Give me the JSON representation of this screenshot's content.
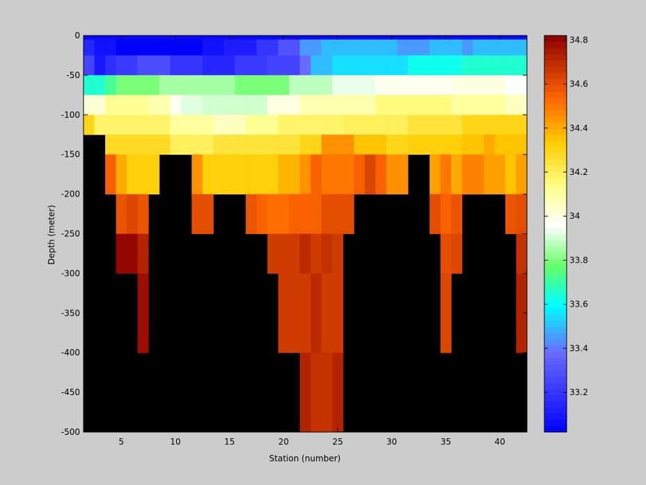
{
  "chart_data": {
    "type": "heatmap",
    "title": "",
    "xlabel": "Station (number)",
    "ylabel": "Depth (meter)",
    "xlim": [
      1.5,
      42.5
    ],
    "ylim": [
      -500,
      0
    ],
    "xticks": [
      5,
      10,
      15,
      20,
      25,
      30,
      35,
      40
    ],
    "yticks": [
      0,
      -50,
      -100,
      -150,
      -200,
      -250,
      -300,
      -350,
      -400,
      -450,
      -500
    ],
    "depth_bins": [
      {
        "top": 0,
        "bottom": -5
      },
      {
        "top": -5,
        "bottom": -25
      },
      {
        "top": -25,
        "bottom": -50
      },
      {
        "top": -50,
        "bottom": -75
      },
      {
        "top": -75,
        "bottom": -100
      },
      {
        "top": -100,
        "bottom": -125
      },
      {
        "top": -125,
        "bottom": -150
      },
      {
        "top": -150,
        "bottom": -200
      },
      {
        "top": -200,
        "bottom": -250
      },
      {
        "top": -250,
        "bottom": -300
      },
      {
        "top": -300,
        "bottom": -400
      },
      {
        "top": -400,
        "bottom": -500
      }
    ],
    "rows": [
      {
        "segments": [
          {
            "from": 2,
            "to": 42,
            "value": 33.05
          }
        ]
      },
      {
        "segments": [
          {
            "from": 2,
            "to": 2,
            "value": 33.15
          },
          {
            "from": 3,
            "to": 4,
            "value": 33.08
          },
          {
            "from": 5,
            "to": 12,
            "value": 33.02
          },
          {
            "from": 13,
            "to": 14,
            "value": 33.08
          },
          {
            "from": 15,
            "to": 17,
            "value": 33.12
          },
          {
            "from": 18,
            "to": 19,
            "value": 33.2
          },
          {
            "from": 20,
            "to": 21,
            "value": 33.3
          },
          {
            "from": 22,
            "to": 23,
            "value": 33.45
          },
          {
            "from": 24,
            "to": 30,
            "value": 33.5
          },
          {
            "from": 31,
            "to": 33,
            "value": 33.45
          },
          {
            "from": 34,
            "to": 36,
            "value": 33.5
          },
          {
            "from": 37,
            "to": 37,
            "value": 33.45
          },
          {
            "from": 38,
            "to": 42,
            "value": 33.5
          }
        ]
      },
      {
        "segments": [
          {
            "from": 2,
            "to": 2,
            "value": 33.25
          },
          {
            "from": 3,
            "to": 3,
            "value": 33.1
          },
          {
            "from": 4,
            "to": 4,
            "value": 33.18
          },
          {
            "from": 5,
            "to": 6,
            "value": 33.22
          },
          {
            "from": 7,
            "to": 9,
            "value": 33.28
          },
          {
            "from": 10,
            "to": 12,
            "value": 33.2
          },
          {
            "from": 13,
            "to": 15,
            "value": 33.15
          },
          {
            "from": 16,
            "to": 18,
            "value": 33.22
          },
          {
            "from": 19,
            "to": 21,
            "value": 33.25
          },
          {
            "from": 22,
            "to": 22,
            "value": 33.38
          },
          {
            "from": 23,
            "to": 24,
            "value": 33.5
          },
          {
            "from": 25,
            "to": 31,
            "value": 33.55
          },
          {
            "from": 32,
            "to": 36,
            "value": 33.62
          },
          {
            "from": 37,
            "to": 42,
            "value": 33.65
          }
        ]
      },
      {
        "segments": [
          {
            "from": 2,
            "to": 3,
            "value": 33.65
          },
          {
            "from": 4,
            "to": 4,
            "value": 33.72
          },
          {
            "from": 5,
            "to": 8,
            "value": 33.8
          },
          {
            "from": 9,
            "to": 15,
            "value": 33.85
          },
          {
            "from": 16,
            "to": 20,
            "value": 33.8
          },
          {
            "from": 21,
            "to": 24,
            "value": 33.88
          },
          {
            "from": 25,
            "to": 28,
            "value": 33.93
          },
          {
            "from": 29,
            "to": 35,
            "value": 33.98
          },
          {
            "from": 36,
            "to": 40,
            "value": 34.0
          },
          {
            "from": 41,
            "to": 42,
            "value": 33.95
          }
        ]
      },
      {
        "segments": [
          {
            "from": 2,
            "to": 3,
            "value": 34.02
          },
          {
            "from": 4,
            "to": 7,
            "value": 34.12
          },
          {
            "from": 8,
            "to": 9,
            "value": 34.08
          },
          {
            "from": 10,
            "to": 10,
            "value": 33.98
          },
          {
            "from": 11,
            "to": 12,
            "value": 33.92
          },
          {
            "from": 13,
            "to": 18,
            "value": 33.9
          },
          {
            "from": 19,
            "to": 21,
            "value": 34.0
          },
          {
            "from": 22,
            "to": 28,
            "value": 34.08
          },
          {
            "from": 29,
            "to": 35,
            "value": 34.15
          },
          {
            "from": 36,
            "to": 40,
            "value": 34.1
          },
          {
            "from": 41,
            "to": 42,
            "value": 34.05
          }
        ]
      },
      {
        "segments": [
          {
            "from": 2,
            "to": 2,
            "value": 34.3
          },
          {
            "from": 3,
            "to": 9,
            "value": 34.18
          },
          {
            "from": 10,
            "to": 13,
            "value": 34.1
          },
          {
            "from": 14,
            "to": 16,
            "value": 34.05
          },
          {
            "from": 17,
            "to": 19,
            "value": 34.12
          },
          {
            "from": 20,
            "to": 25,
            "value": 34.18
          },
          {
            "from": 26,
            "to": 31,
            "value": 34.2
          },
          {
            "from": 32,
            "to": 36,
            "value": 34.25
          },
          {
            "from": 37,
            "to": 42,
            "value": 34.3
          }
        ]
      },
      {
        "segments": [
          {
            "from": 4,
            "to": 9,
            "value": 34.28
          },
          {
            "from": 10,
            "to": 13,
            "value": 34.2
          },
          {
            "from": 14,
            "to": 21,
            "value": 34.25
          },
          {
            "from": 22,
            "to": 23,
            "value": 34.3
          },
          {
            "from": 24,
            "to": 26,
            "value": 34.45
          },
          {
            "from": 27,
            "to": 29,
            "value": 34.35
          },
          {
            "from": 30,
            "to": 31,
            "value": 34.3
          },
          {
            "from": 32,
            "to": 36,
            "value": 34.32
          },
          {
            "from": 37,
            "to": 38,
            "value": 34.35
          },
          {
            "from": 39,
            "to": 39,
            "value": 34.4
          },
          {
            "from": 40,
            "to": 42,
            "value": 34.35
          }
        ]
      },
      {
        "segments": [
          {
            "from": 4,
            "to": 4,
            "value": 34.55
          },
          {
            "from": 5,
            "to": 5,
            "value": 34.4
          },
          {
            "from": 6,
            "to": 8,
            "value": 34.32
          },
          {
            "from": 12,
            "to": 12,
            "value": 34.45
          },
          {
            "from": 13,
            "to": 19,
            "value": 34.32
          },
          {
            "from": 20,
            "to": 21,
            "value": 34.38
          },
          {
            "from": 22,
            "to": 22,
            "value": 34.45
          },
          {
            "from": 23,
            "to": 23,
            "value": 34.55
          },
          {
            "from": 24,
            "to": 26,
            "value": 34.5
          },
          {
            "from": 27,
            "to": 27,
            "value": 34.55
          },
          {
            "from": 28,
            "to": 28,
            "value": 34.62
          },
          {
            "from": 29,
            "to": 29,
            "value": 34.55
          },
          {
            "from": 30,
            "to": 31,
            "value": 34.45
          },
          {
            "from": 34,
            "to": 34,
            "value": 34.42
          },
          {
            "from": 35,
            "to": 35,
            "value": 34.5
          },
          {
            "from": 36,
            "to": 36,
            "value": 34.4
          },
          {
            "from": 37,
            "to": 38,
            "value": 34.48
          },
          {
            "from": 39,
            "to": 40,
            "value": 34.42
          },
          {
            "from": 41,
            "to": 41,
            "value": 34.35
          },
          {
            "from": 42,
            "to": 42,
            "value": 34.42
          }
        ]
      },
      {
        "segments": [
          {
            "from": 5,
            "to": 5,
            "value": 34.58
          },
          {
            "from": 6,
            "to": 6,
            "value": 34.62
          },
          {
            "from": 7,
            "to": 7,
            "value": 34.58
          },
          {
            "from": 12,
            "to": 13,
            "value": 34.6
          },
          {
            "from": 17,
            "to": 17,
            "value": 34.58
          },
          {
            "from": 18,
            "to": 18,
            "value": 34.55
          },
          {
            "from": 19,
            "to": 20,
            "value": 34.52
          },
          {
            "from": 21,
            "to": 23,
            "value": 34.55
          },
          {
            "from": 24,
            "to": 26,
            "value": 34.6
          },
          {
            "from": 34,
            "to": 34,
            "value": 34.6
          },
          {
            "from": 35,
            "to": 35,
            "value": 34.55
          },
          {
            "from": 36,
            "to": 36,
            "value": 34.58
          },
          {
            "from": 41,
            "to": 41,
            "value": 34.58
          },
          {
            "from": 42,
            "to": 42,
            "value": 34.6
          }
        ]
      },
      {
        "segments": [
          {
            "from": 5,
            "to": 6,
            "value": 34.8
          },
          {
            "from": 7,
            "to": 7,
            "value": 34.72
          },
          {
            "from": 19,
            "to": 21,
            "value": 34.65
          },
          {
            "from": 22,
            "to": 22,
            "value": 34.7
          },
          {
            "from": 23,
            "to": 23,
            "value": 34.65
          },
          {
            "from": 24,
            "to": 24,
            "value": 34.68
          },
          {
            "from": 25,
            "to": 25,
            "value": 34.65
          },
          {
            "from": 35,
            "to": 35,
            "value": 34.6
          },
          {
            "from": 36,
            "to": 36,
            "value": 34.62
          },
          {
            "from": 42,
            "to": 42,
            "value": 34.68
          }
        ]
      },
      {
        "segments": [
          {
            "from": 7,
            "to": 7,
            "value": 34.78
          },
          {
            "from": 20,
            "to": 22,
            "value": 34.65
          },
          {
            "from": 23,
            "to": 23,
            "value": 34.7
          },
          {
            "from": 24,
            "to": 25,
            "value": 34.65
          },
          {
            "from": 35,
            "to": 35,
            "value": 34.62
          },
          {
            "from": 42,
            "to": 42,
            "value": 34.72
          }
        ]
      },
      {
        "segments": [
          {
            "from": 22,
            "to": 22,
            "value": 34.72
          },
          {
            "from": 23,
            "to": 24,
            "value": 34.68
          },
          {
            "from": 25,
            "to": 25,
            "value": 34.72
          }
        ]
      }
    ],
    "nodata_color": "#000000",
    "colorbar": {
      "min": 33.02,
      "max": 34.82,
      "ticks": [
        33.2,
        33.4,
        33.6,
        33.8,
        34,
        34.2,
        34.4,
        34.6,
        34.8
      ],
      "tick_labels": [
        "33.2",
        "33.4",
        "33.6",
        "33.8",
        "34",
        "34.2",
        "34.4",
        "34.6",
        "34.8"
      ],
      "steps": 64
    },
    "colormap_stops": [
      {
        "pos": 0.0,
        "color": "#0000ff"
      },
      {
        "pos": 0.2,
        "color": "#6a6aff"
      },
      {
        "pos": 0.32,
        "color": "#00ffff"
      },
      {
        "pos": 0.42,
        "color": "#66ff66"
      },
      {
        "pos": 0.52,
        "color": "#ffffff"
      },
      {
        "pos": 0.62,
        "color": "#ffff88"
      },
      {
        "pos": 0.73,
        "color": "#ffcc00"
      },
      {
        "pos": 0.84,
        "color": "#ff6600"
      },
      {
        "pos": 1.0,
        "color": "#8b0000"
      }
    ]
  }
}
